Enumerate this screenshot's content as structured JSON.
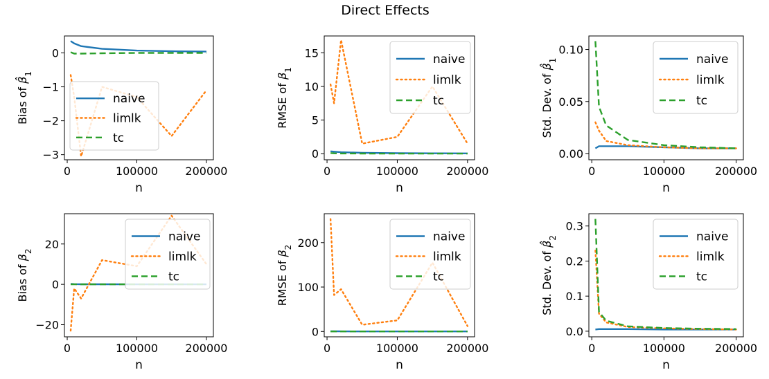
{
  "figure": {
    "title": "Direct Effects"
  },
  "chart_data": [
    {
      "type": "line",
      "title": "",
      "xlabel": "n",
      "ylabel_html": "Bias of β̂₁",
      "ylabel_main": "Bias of ",
      "ylabel_sym": "β̂",
      "ylabel_sub": "1",
      "xlim": [
        -4000,
        210000
      ],
      "ylim": [
        -3.15,
        0.5
      ],
      "xticks": [
        0,
        100000,
        200000
      ],
      "xtick_labels": [
        "0",
        "100000",
        "200000"
      ],
      "yticks": [
        0,
        -1,
        -2,
        -3
      ],
      "ytick_labels": [
        "0",
        "−1",
        "−2",
        "−3"
      ],
      "legend": {
        "position": "center-left",
        "entries": [
          "naive",
          "limlk",
          "tc"
        ]
      },
      "series": [
        {
          "name": "naive",
          "style": "solid",
          "x": [
            5000,
            10000,
            20000,
            50000,
            100000,
            150000,
            200000
          ],
          "y": [
            0.35,
            0.28,
            0.2,
            0.12,
            0.07,
            0.05,
            0.04
          ]
        },
        {
          "name": "limlk",
          "style": "dotted",
          "x": [
            5000,
            10000,
            20000,
            50000,
            100000,
            150000,
            200000
          ],
          "y": [
            -0.65,
            -1.3,
            -3.05,
            -1.0,
            -1.3,
            -2.45,
            -1.1
          ]
        },
        {
          "name": "tc",
          "style": "dashed",
          "x": [
            5000,
            10000,
            20000,
            50000,
            100000,
            150000,
            200000
          ],
          "y": [
            0.02,
            -0.02,
            -0.02,
            -0.01,
            0.0,
            0.0,
            0.0
          ]
        }
      ]
    },
    {
      "type": "line",
      "title": "",
      "xlabel": "n",
      "ylabel_main": "RMSE of ",
      "ylabel_sym": "β",
      "ylabel_sub": "1",
      "xlim": [
        -4000,
        210000
      ],
      "ylim": [
        -0.9,
        17.5
      ],
      "xticks": [
        0,
        100000,
        200000
      ],
      "xtick_labels": [
        "0",
        "100000",
        "200000"
      ],
      "yticks": [
        0,
        5,
        10,
        15
      ],
      "ytick_labels": [
        "0",
        "5",
        "10",
        "15"
      ],
      "legend": {
        "position": "upper-right",
        "entries": [
          "naive",
          "limlk",
          "tc"
        ]
      },
      "series": [
        {
          "name": "naive",
          "style": "solid",
          "x": [
            5000,
            10000,
            20000,
            50000,
            100000,
            150000,
            200000
          ],
          "y": [
            0.35,
            0.3,
            0.22,
            0.14,
            0.08,
            0.06,
            0.05
          ]
        },
        {
          "name": "limlk",
          "style": "dotted",
          "x": [
            5000,
            10000,
            20000,
            50000,
            100000,
            150000,
            200000
          ],
          "y": [
            10.3,
            7.5,
            16.9,
            1.5,
            2.5,
            10.0,
            1.5
          ]
        },
        {
          "name": "tc",
          "style": "dashed",
          "x": [
            5000,
            10000,
            20000,
            50000,
            100000,
            150000,
            200000
          ],
          "y": [
            0.1,
            0.06,
            0.04,
            0.03,
            0.02,
            0.02,
            0.01
          ]
        }
      ]
    },
    {
      "type": "line",
      "title": "",
      "xlabel": "n",
      "ylabel_main": "Std. Dev. of ",
      "ylabel_sym": "β̂",
      "ylabel_sub": "1",
      "xlim": [
        -4000,
        210000
      ],
      "ylim": [
        -0.006,
        0.113
      ],
      "xticks": [
        0,
        100000,
        200000
      ],
      "xtick_labels": [
        "0",
        "100000",
        "200000"
      ],
      "yticks": [
        0.0,
        0.05,
        0.1
      ],
      "ytick_labels": [
        "0.00",
        "0.05",
        "0.10"
      ],
      "legend": {
        "position": "upper-right",
        "entries": [
          "naive",
          "limlk",
          "tc"
        ]
      },
      "series": [
        {
          "name": "naive",
          "style": "solid",
          "x": [
            5000,
            10000,
            20000,
            50000,
            100000,
            150000,
            200000
          ],
          "y": [
            0.005,
            0.007,
            0.007,
            0.007,
            0.006,
            0.005,
            0.005
          ]
        },
        {
          "name": "limlk",
          "style": "dotted",
          "x": [
            5000,
            10000,
            20000,
            50000,
            100000,
            150000,
            200000
          ],
          "y": [
            0.03,
            0.022,
            0.012,
            0.008,
            0.006,
            0.005,
            0.005
          ]
        },
        {
          "name": "tc",
          "style": "dashed",
          "x": [
            5000,
            10000,
            20000,
            50000,
            100000,
            150000,
            200000
          ],
          "y": [
            0.108,
            0.045,
            0.027,
            0.013,
            0.008,
            0.006,
            0.005
          ]
        }
      ]
    },
    {
      "type": "line",
      "title": "",
      "xlabel": "n",
      "ylabel_main": "Bias of ",
      "ylabel_sym": "β",
      "ylabel_sub": "2",
      "xlim": [
        -4000,
        210000
      ],
      "ylim": [
        -26,
        35
      ],
      "xticks": [
        0,
        100000,
        200000
      ],
      "xtick_labels": [
        "0",
        "100000",
        "200000"
      ],
      "yticks": [
        20,
        0,
        -20
      ],
      "ytick_labels": [
        "20",
        "0",
        "−20"
      ],
      "legend": {
        "position": "upper-right",
        "entries": [
          "naive",
          "limlk",
          "tc"
        ]
      },
      "series": [
        {
          "name": "naive",
          "style": "solid",
          "x": [
            5000,
            10000,
            20000,
            50000,
            100000,
            150000,
            200000
          ],
          "y": [
            0.2,
            0.1,
            0.05,
            0.03,
            0.02,
            0.02,
            0.02
          ]
        },
        {
          "name": "limlk",
          "style": "dotted",
          "x": [
            5000,
            10000,
            20000,
            50000,
            100000,
            150000,
            200000
          ],
          "y": [
            -23,
            -2,
            -7,
            12,
            9,
            34,
            10
          ]
        },
        {
          "name": "tc",
          "style": "dashed",
          "x": [
            5000,
            10000,
            20000,
            50000,
            100000,
            150000,
            200000
          ],
          "y": [
            0.0,
            0.0,
            0.0,
            0.0,
            0.0,
            0.0,
            0.0
          ]
        }
      ]
    },
    {
      "type": "line",
      "title": "",
      "xlabel": "n",
      "ylabel_main": "RMSE of ",
      "ylabel_sym": "β",
      "ylabel_sub": "2",
      "xlim": [
        -4000,
        210000
      ],
      "ylim": [
        -12,
        265
      ],
      "xticks": [
        0,
        100000,
        200000
      ],
      "xtick_labels": [
        "0",
        "100000",
        "200000"
      ],
      "yticks": [
        0,
        100,
        200
      ],
      "ytick_labels": [
        "0",
        "100",
        "200"
      ],
      "legend": {
        "position": "upper-right",
        "entries": [
          "naive",
          "limlk",
          "tc"
        ]
      },
      "series": [
        {
          "name": "naive",
          "style": "solid",
          "x": [
            5000,
            10000,
            20000,
            50000,
            100000,
            150000,
            200000
          ],
          "y": [
            0.5,
            0.4,
            0.3,
            0.2,
            0.2,
            0.2,
            0.2
          ]
        },
        {
          "name": "limlk",
          "style": "dotted",
          "x": [
            5000,
            10000,
            20000,
            50000,
            100000,
            150000,
            200000
          ],
          "y": [
            253,
            82,
            95,
            15,
            25,
            155,
            12
          ]
        },
        {
          "name": "tc",
          "style": "dashed",
          "x": [
            5000,
            10000,
            20000,
            50000,
            100000,
            150000,
            200000
          ],
          "y": [
            0.1,
            0.1,
            0.1,
            0.1,
            0.1,
            0.1,
            0.1
          ]
        }
      ]
    },
    {
      "type": "line",
      "title": "",
      "xlabel": "n",
      "ylabel_main": "Std. Dev. of ",
      "ylabel_sym": "β̂",
      "ylabel_sub": "2",
      "xlim": [
        -4000,
        210000
      ],
      "ylim": [
        -0.016,
        0.335
      ],
      "xticks": [
        0,
        100000,
        200000
      ],
      "xtick_labels": [
        "0",
        "100000",
        "200000"
      ],
      "yticks": [
        0.0,
        0.1,
        0.2,
        0.3
      ],
      "ytick_labels": [
        "0.0",
        "0.1",
        "0.2",
        "0.3"
      ],
      "legend": {
        "position": "upper-right",
        "entries": [
          "naive",
          "limlk",
          "tc"
        ]
      },
      "series": [
        {
          "name": "naive",
          "style": "solid",
          "x": [
            5000,
            10000,
            20000,
            50000,
            100000,
            150000,
            200000
          ],
          "y": [
            0.005,
            0.006,
            0.006,
            0.006,
            0.005,
            0.005,
            0.005
          ]
        },
        {
          "name": "limlk",
          "style": "dotted",
          "x": [
            5000,
            10000,
            20000,
            50000,
            100000,
            150000,
            200000
          ],
          "y": [
            0.23,
            0.05,
            0.025,
            0.012,
            0.008,
            0.006,
            0.005
          ]
        },
        {
          "name": "tc",
          "style": "dashed",
          "x": [
            5000,
            10000,
            20000,
            50000,
            100000,
            150000,
            200000
          ],
          "y": [
            0.32,
            0.055,
            0.03,
            0.014,
            0.009,
            0.007,
            0.006
          ]
        }
      ]
    }
  ],
  "colors": {
    "naive": "#1f77b4",
    "limlk": "#ff7f0e",
    "tc": "#2ca02c"
  }
}
